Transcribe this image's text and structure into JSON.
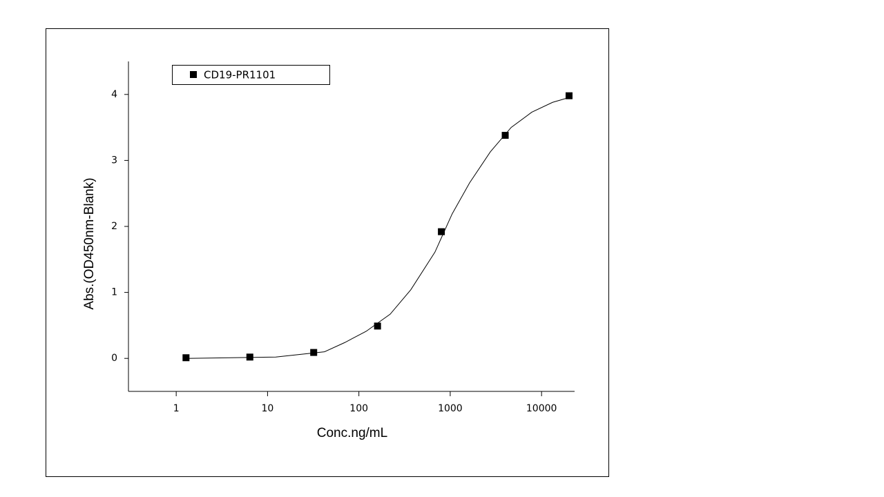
{
  "chart_data": {
    "type": "scatter",
    "x_label": "Conc.ng/mL",
    "y_label": "Abs.(OD450nm-Blank)",
    "x_log": true,
    "xlim": [
      0.3,
      23000
    ],
    "ylim": [
      -0.5,
      4.5
    ],
    "xticks": [
      1,
      10,
      100,
      1000,
      10000
    ],
    "yticks": [
      0,
      1,
      2,
      3,
      4
    ],
    "series": [
      {
        "name": "CD19-PR1101",
        "color": "#000000",
        "x": [
          1.28,
          6.4,
          32,
          160,
          800,
          4000,
          20000
        ],
        "values": [
          0.01,
          0.02,
          0.09,
          0.49,
          1.92,
          3.38,
          3.98
        ]
      }
    ],
    "fit_curve": {
      "color": "#000000",
      "x": [
        1.28,
        12.3,
        42,
        70,
        120,
        220,
        370,
        680,
        1050,
        1630,
        2750,
        4650,
        7800,
        13200,
        20800
      ],
      "values": [
        0.0,
        0.02,
        0.1,
        0.24,
        0.41,
        0.67,
        1.04,
        1.61,
        2.19,
        2.66,
        3.13,
        3.5,
        3.73,
        3.88,
        3.96
      ]
    },
    "legend": "top-left"
  }
}
